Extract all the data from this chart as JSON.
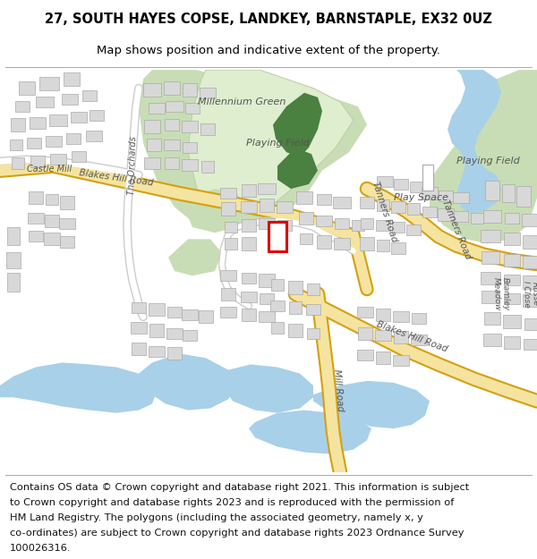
{
  "title_line1": "27, SOUTH HAYES COPSE, LANDKEY, BARNSTAPLE, EX32 0UZ",
  "title_line2": "Map shows position and indicative extent of the property.",
  "footer_text": "Contains OS data © Crown copyright and database right 2021. This information is subject to Crown copyright and database rights 2023 and is reproduced with the permission of HM Land Registry. The polygons (including the associated geometry, namely x, y co-ordinates) are subject to Crown copyright and database rights 2023 Ordnance Survey 100026316.",
  "title_fontsize": 10.5,
  "subtitle_fontsize": 9.5,
  "footer_fontsize": 8.2,
  "map_bg_color": "#ffffff",
  "fig_width": 6.0,
  "fig_height": 6.25
}
